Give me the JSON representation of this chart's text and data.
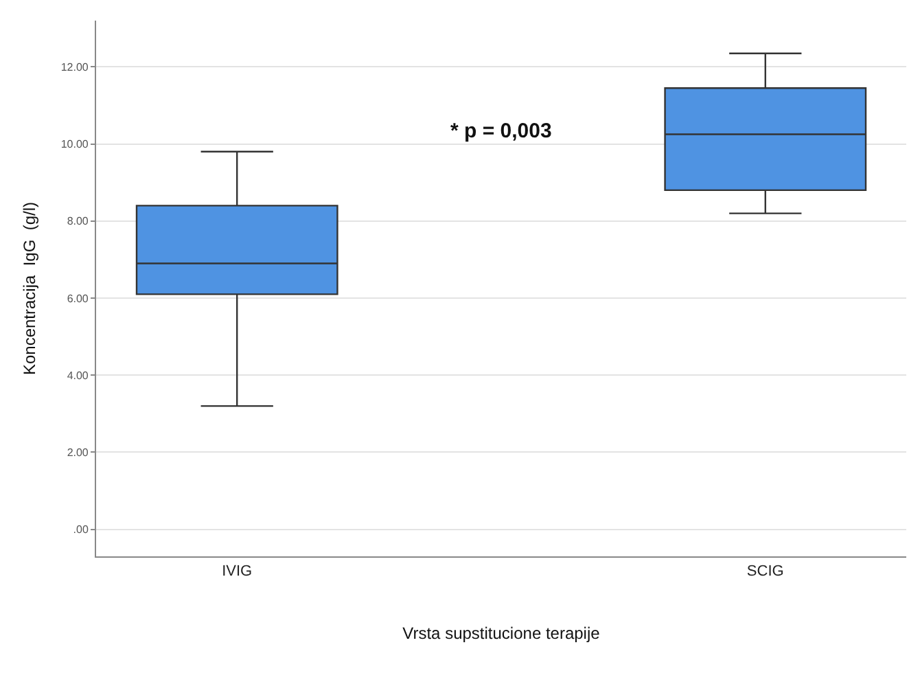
{
  "chart_data": {
    "type": "box",
    "xlabel": "Vrsta supstitucione terapije",
    "ylabel": "Koncentracija  IgG  (g/l)",
    "categories": [
      "IVIG",
      "SCIG"
    ],
    "boxes": [
      {
        "low": 3.2,
        "q1": 6.1,
        "median": 6.9,
        "q3": 8.4,
        "high": 9.8
      },
      {
        "low": 8.2,
        "q1": 8.8,
        "median": 10.25,
        "q3": 11.45,
        "high": 12.35
      }
    ],
    "color": "#4f93e2",
    "ylim": [
      -0.7,
      13.2
    ],
    "yticks": [
      {
        "value": 0,
        "label": ".00"
      },
      {
        "value": 2,
        "label": "2.00"
      },
      {
        "value": 4,
        "label": "4.00"
      },
      {
        "value": 6,
        "label": "6.00"
      },
      {
        "value": 8,
        "label": "8.00"
      },
      {
        "value": 10,
        "label": "10.00"
      },
      {
        "value": 12,
        "label": "12.00"
      }
    ],
    "grid": "y",
    "annotations": [
      "* p = 0,003"
    ]
  }
}
